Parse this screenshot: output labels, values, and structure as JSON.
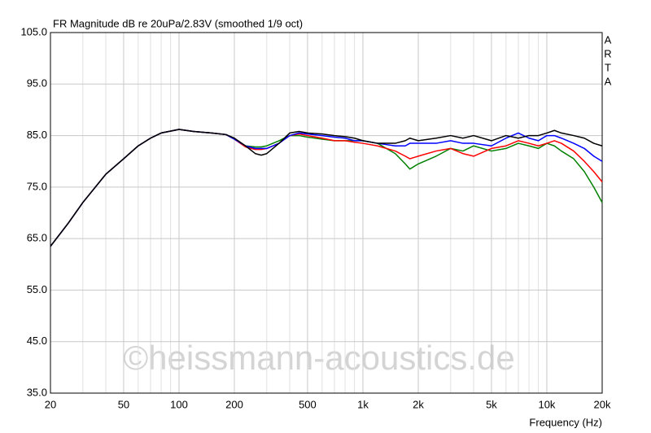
{
  "chart_data": {
    "type": "line",
    "title": "FR Magnitude dB re 20uPa/2.83V (smoothed 1/9 oct)",
    "x_label": "Frequency (Hz)",
    "side_label": [
      "A",
      "R",
      "T",
      "A"
    ],
    "watermark": "©heissmann-acoustics.de",
    "x_scale": "log",
    "grid": true,
    "xlim": [
      20,
      20000
    ],
    "ylim": [
      35,
      105
    ],
    "xticks": [
      20,
      50,
      100,
      200,
      500,
      {
        "value": 1000,
        "label": "1k"
      },
      {
        "value": 2000,
        "label": "2k"
      },
      {
        "value": 5000,
        "label": "5k"
      },
      {
        "value": 10000,
        "label": "10k"
      },
      {
        "value": 20000,
        "label": "20k"
      }
    ],
    "xminor": [
      30,
      40,
      60,
      70,
      80,
      90,
      300,
      400,
      600,
      700,
      800,
      900,
      3000,
      4000,
      6000,
      7000,
      8000,
      9000
    ],
    "yticks": [
      {
        "value": 35,
        "label": "35.0"
      },
      {
        "value": 45,
        "label": "45.0"
      },
      {
        "value": 55,
        "label": "55.0"
      },
      {
        "value": 65,
        "label": "65.0"
      },
      {
        "value": 75,
        "label": "75.0"
      },
      {
        "value": 85,
        "label": "85.0"
      },
      {
        "value": 95,
        "label": "95.0"
      },
      {
        "value": 105,
        "label": "105.0"
      }
    ],
    "x": [
      20,
      25,
      30,
      40,
      50,
      60,
      70,
      80,
      100,
      120,
      150,
      180,
      200,
      230,
      260,
      280,
      300,
      350,
      400,
      450,
      500,
      600,
      700,
      800,
      900,
      1000,
      1200,
      1500,
      1700,
      1800,
      2000,
      2500,
      3000,
      3500,
      4000,
      5000,
      6000,
      7000,
      8000,
      9000,
      10000,
      11000,
      12000,
      14000,
      16000,
      18000,
      20000
    ],
    "series": [
      {
        "color": "#008000",
        "values": [
          63.5,
          68,
          72,
          77.5,
          80.5,
          83,
          84.5,
          85.5,
          86.2,
          85.8,
          85.5,
          85.2,
          84.3,
          83,
          82.8,
          82.8,
          83,
          84,
          85,
          85,
          84.7,
          84.3,
          84,
          84,
          84,
          84,
          83.5,
          81.5,
          79.5,
          78.5,
          79.5,
          81,
          82.5,
          82,
          83,
          82,
          82.5,
          83.5,
          83,
          82.5,
          83.5,
          83,
          82,
          80.5,
          78,
          75,
          72
        ]
      },
      {
        "color": "#ff0000",
        "values": [
          63.5,
          68,
          72,
          77.5,
          80.5,
          83,
          84.5,
          85.5,
          86.2,
          85.8,
          85.5,
          85.2,
          84.3,
          82.8,
          82.3,
          82.3,
          82.5,
          83.5,
          85,
          85.3,
          85,
          84.5,
          84,
          84,
          83.7,
          83.5,
          83,
          82,
          81,
          80.5,
          81,
          82,
          82.5,
          81.5,
          81,
          82.5,
          83,
          84,
          83.5,
          83,
          83.5,
          84,
          83.5,
          82,
          80,
          78,
          76
        ]
      },
      {
        "color": "#0000ff",
        "values": [
          63.5,
          68,
          72,
          77.5,
          80.5,
          83,
          84.5,
          85.5,
          86.2,
          85.8,
          85.5,
          85.2,
          84.3,
          83,
          82.5,
          82.5,
          82.5,
          83.5,
          85,
          85.5,
          85.3,
          85,
          84.7,
          84.5,
          84,
          84,
          83.5,
          83,
          83,
          83.5,
          83.5,
          83.5,
          84,
          83.5,
          83.5,
          83,
          84.5,
          85.5,
          84.5,
          84,
          85,
          85,
          84.5,
          83.5,
          82.5,
          81,
          80
        ]
      },
      {
        "color": "#000000",
        "values": [
          63.5,
          68,
          72,
          77.5,
          80.5,
          83,
          84.5,
          85.5,
          86.2,
          85.8,
          85.5,
          85.2,
          84.5,
          83,
          81.5,
          81.2,
          81.5,
          83.5,
          85.5,
          85.8,
          85.5,
          85.3,
          85,
          84.8,
          84.5,
          84,
          83.5,
          83.5,
          84,
          84.5,
          84,
          84.5,
          85,
          84.5,
          85,
          84,
          85,
          84.5,
          85,
          85,
          85.5,
          86,
          85.5,
          85,
          84.5,
          83.5,
          83
        ]
      }
    ]
  }
}
